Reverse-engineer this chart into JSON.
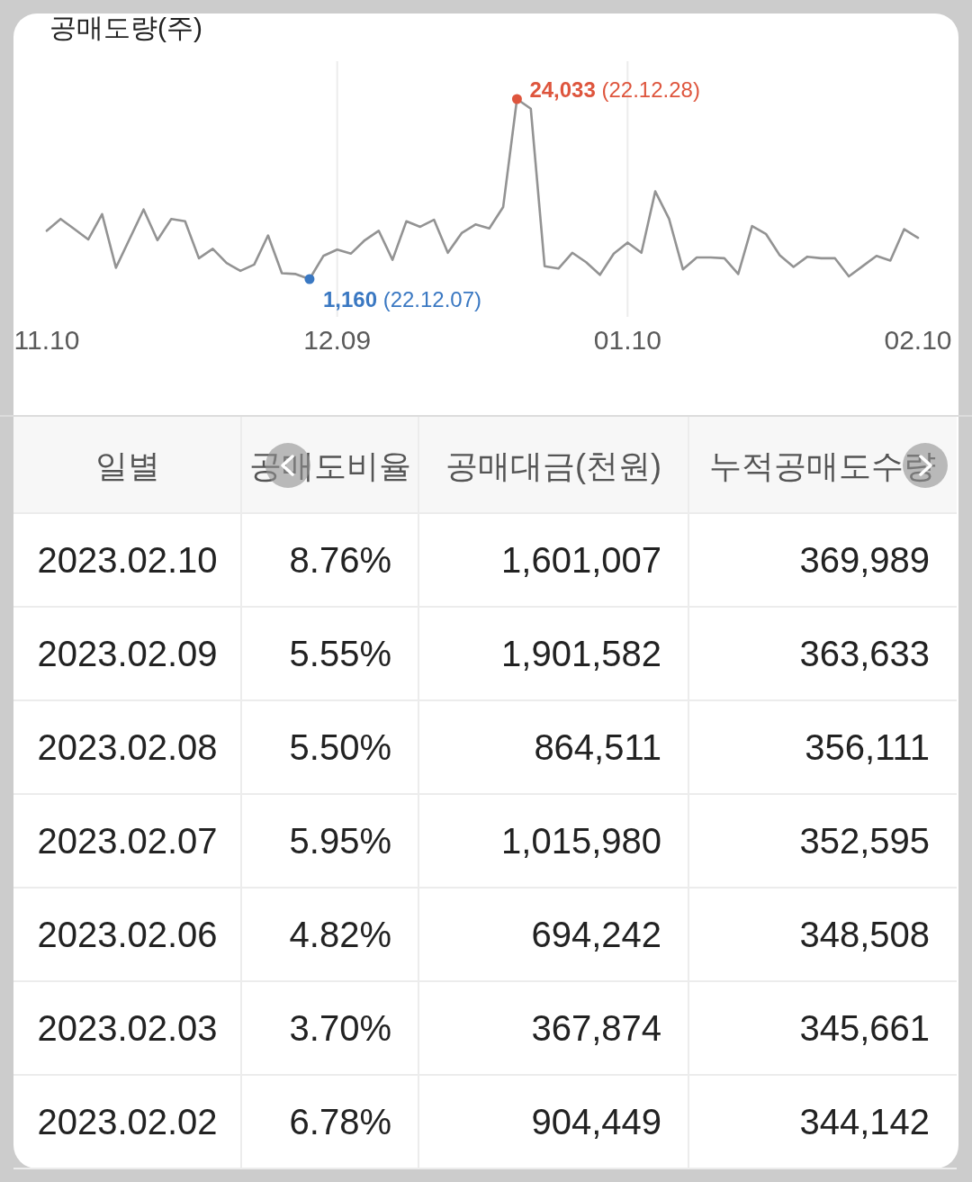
{
  "chart_data": [
    {
      "type": "line",
      "title": "공매도량(주)",
      "categories": [
        "11.10",
        null,
        null,
        null,
        null,
        null,
        null,
        null,
        null,
        null,
        null,
        null,
        null,
        null,
        null,
        null,
        null,
        null,
        null,
        null,
        null,
        "12.09",
        null,
        null,
        null,
        null,
        null,
        null,
        null,
        null,
        null,
        null,
        null,
        null,
        null,
        null,
        null,
        null,
        null,
        null,
        null,
        null,
        "01.10",
        null,
        null,
        null,
        null,
        null,
        null,
        null,
        null,
        null,
        null,
        null,
        null,
        null,
        null,
        null,
        null,
        null,
        null,
        null,
        null,
        "02.10"
      ],
      "series": [
        {
          "type": "line",
          "color": "#939393",
          "values": [
            7300,
            8800,
            7500,
            6200,
            9400,
            2600,
            6300,
            10000,
            6100,
            8800,
            8500,
            3800,
            5000,
            3200,
            2200,
            3000,
            6700,
            1900,
            1800,
            1160,
            4100,
            4900,
            4400,
            6100,
            7300,
            3600,
            8500,
            7800,
            8700,
            4500,
            7000,
            8100,
            7600,
            10300,
            24033,
            22800,
            2800,
            2500,
            4500,
            3300,
            1700,
            4400,
            5800,
            4500,
            12300,
            8800,
            2400,
            3900,
            3900,
            3800,
            1800,
            7900,
            6900,
            4200,
            2700,
            4000,
            3800,
            3800,
            1500,
            2800,
            4100,
            3500,
            7500,
            6400
          ],
          "value_labels": [
            null,
            null,
            null,
            null,
            null,
            null,
            null,
            null,
            null,
            null,
            null,
            null,
            null,
            null,
            null,
            null,
            null,
            null,
            null,
            "1,160 (22.12.07)",
            null,
            null,
            null,
            null,
            null,
            null,
            null,
            null,
            null,
            null,
            null,
            null,
            null,
            null,
            "24,033 (22.12.28)",
            null,
            null,
            null,
            null,
            null,
            null,
            null,
            null,
            null,
            null,
            null,
            null,
            null,
            null,
            null,
            null,
            null,
            null,
            null,
            null,
            null,
            null,
            null,
            null,
            null,
            null,
            null,
            null,
            null
          ]
        },
        {
          "type": "scatter",
          "color": "#3a78c2",
          "values": [
            null,
            null,
            null,
            null,
            null,
            null,
            null,
            null,
            null,
            null,
            null,
            null,
            null,
            null,
            null,
            null,
            null,
            null,
            null,
            1160,
            null,
            null,
            null,
            null,
            null,
            null,
            null,
            null,
            null,
            null,
            null,
            null,
            null,
            null,
            null,
            null,
            null,
            null,
            null,
            null,
            null,
            null,
            null,
            null,
            null,
            null,
            null,
            null,
            null,
            null,
            null,
            null,
            null,
            null,
            null,
            null,
            null,
            null,
            null,
            null,
            null,
            null,
            null,
            null
          ]
        },
        {
          "type": "scatter",
          "color": "#de553d",
          "values": [
            null,
            null,
            null,
            null,
            null,
            null,
            null,
            null,
            null,
            null,
            null,
            null,
            null,
            null,
            null,
            null,
            null,
            null,
            null,
            null,
            null,
            null,
            null,
            null,
            null,
            null,
            null,
            null,
            null,
            null,
            null,
            null,
            null,
            null,
            24033,
            null,
            null,
            null,
            null,
            null,
            null,
            null,
            null,
            null,
            null,
            null,
            null,
            null,
            null,
            null,
            null,
            null,
            null,
            null,
            null,
            null,
            null,
            null,
            null,
            null,
            null,
            null,
            null,
            null
          ]
        }
      ],
      "grid": "x",
      "tick_labels": "x"
    },
    {
      "type": "other",
      "categories": [
        "일별",
        "공매도비율",
        "공매대금(천원)",
        "누적공매도수량"
      ],
      "annotations": [
        "2023.02.10",
        "8.76%",
        "1,601,007",
        "369,989",
        "2023.02.09",
        "5.55%",
        "1,901,582",
        "363,633",
        "2023.02.08",
        "5.50%",
        "864,511",
        "356,111",
        "2023.02.07",
        "5.95%",
        "1,015,980",
        "352,595",
        "2023.02.06",
        "4.82%",
        "694,242",
        "348,508",
        "2023.02.03",
        "3.70%",
        "367,874",
        "345,661",
        "2023.02.02",
        "6.78%",
        "904,449",
        "344,142"
      ]
    }
  ]
}
